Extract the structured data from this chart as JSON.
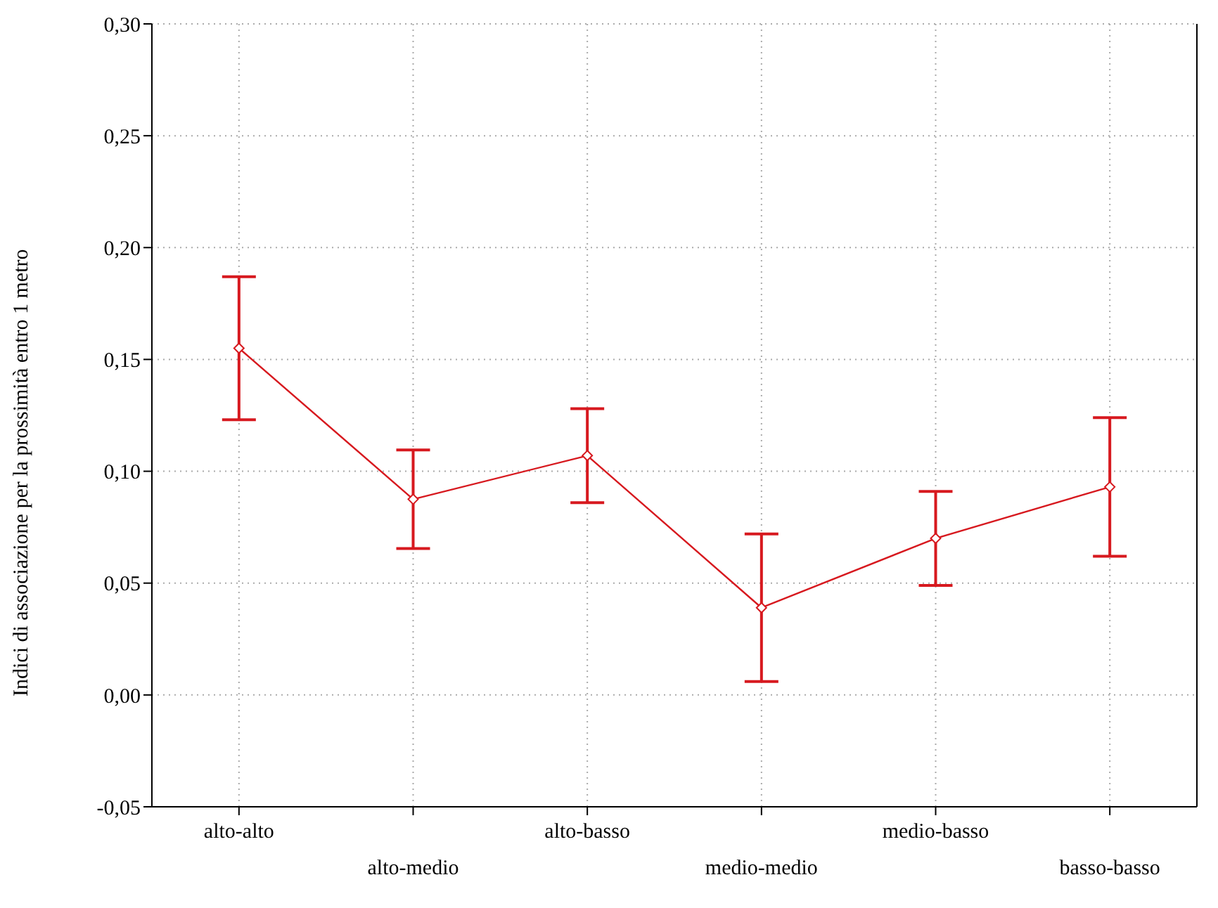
{
  "chart_data": {
    "type": "line",
    "ylabel": "Indici di associazione per la prossimità entro 1 metro",
    "categories": [
      "alto-alto",
      "alto-medio",
      "alto-basso",
      "medio-medio",
      "medio-basso",
      "basso-basso"
    ],
    "series": [
      {
        "color": "#d7191f",
        "values": [
          0.155,
          0.0875,
          0.107,
          0.039,
          0.07,
          0.093
        ],
        "errors": [
          0.032,
          0.022,
          0.021,
          0.033,
          0.021,
          0.031
        ]
      }
    ],
    "ylim": [
      -0.05,
      0.3
    ],
    "yticks": [
      {
        "value": -0.05,
        "label": "-0,05"
      },
      {
        "value": 0,
        "label": "0,00"
      },
      {
        "value": 0.05,
        "label": "0,05"
      },
      {
        "value": 0.1,
        "label": "0,10"
      },
      {
        "value": 0.15,
        "label": "0,15"
      },
      {
        "value": 0.2,
        "label": "0,20"
      },
      {
        "value": 0.25,
        "label": "0,25"
      },
      {
        "value": 0.3,
        "label": "0,30"
      }
    ],
    "grid": true,
    "marker": "diamond",
    "line_style": "solid",
    "legend": false
  }
}
